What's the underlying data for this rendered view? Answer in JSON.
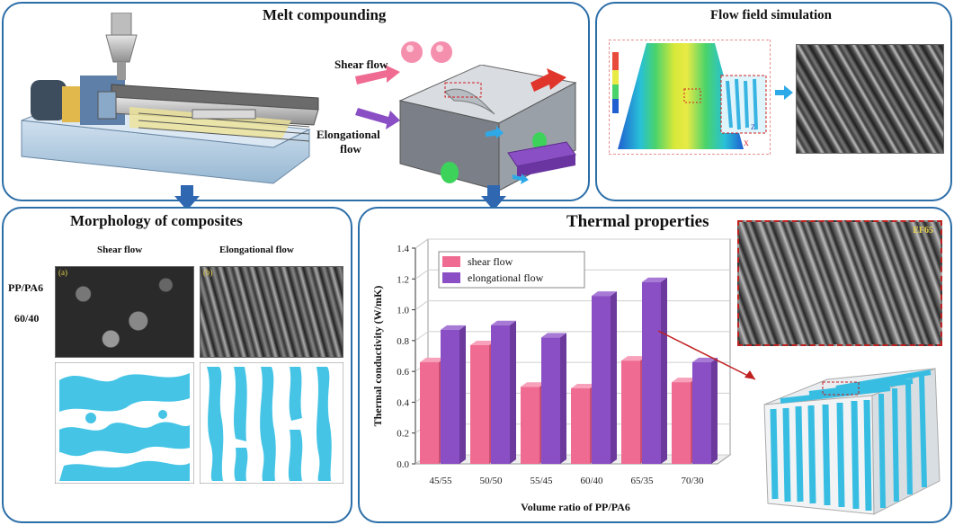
{
  "panels": {
    "melt": {
      "title": "Melt compounding",
      "shear_label": "Shear flow",
      "elong_label_1": "Elongational",
      "elong_label_2": "flow"
    },
    "flow": {
      "title": "Flow field simulation"
    },
    "morph": {
      "title": "Morphology  of composites",
      "col1": "Shear flow",
      "col2": "Elongational flow",
      "row_label_1": "PP/PA6",
      "row_label_2": "60/40",
      "img_a": "(a)",
      "img_b": "(b)"
    },
    "thermal": {
      "title": "Thermal properties",
      "inset_label": "EF65"
    }
  },
  "colors": {
    "border": "#2b6ea8",
    "arrow": "#2f67b1",
    "shear": "#f06b91",
    "elongational": "#8a4fc4",
    "cyan": "#37bde0"
  },
  "chart_data": {
    "type": "bar",
    "categories": [
      "45/55",
      "50/50",
      "55/45",
      "60/40",
      "65/35",
      "70/30"
    ],
    "series": [
      {
        "name": "shear flow",
        "values": [
          0.66,
          0.77,
          0.5,
          0.49,
          0.67,
          0.53
        ],
        "color": "#f06b91"
      },
      {
        "name": "elongational flow",
        "values": [
          0.87,
          0.9,
          0.82,
          1.09,
          1.18,
          0.66
        ],
        "color": "#8a4fc4"
      }
    ],
    "xlabel": "Volume ratio of PP/PA6",
    "ylabel": "Thermal conductivity (W/mK)",
    "ylim": [
      0.0,
      1.4
    ],
    "yticks": [
      "0.0",
      "0.2",
      "0.4",
      "0.6",
      "0.8",
      "1.0",
      "1.2",
      "1.4"
    ],
    "grid": true,
    "legend": "top-left"
  }
}
